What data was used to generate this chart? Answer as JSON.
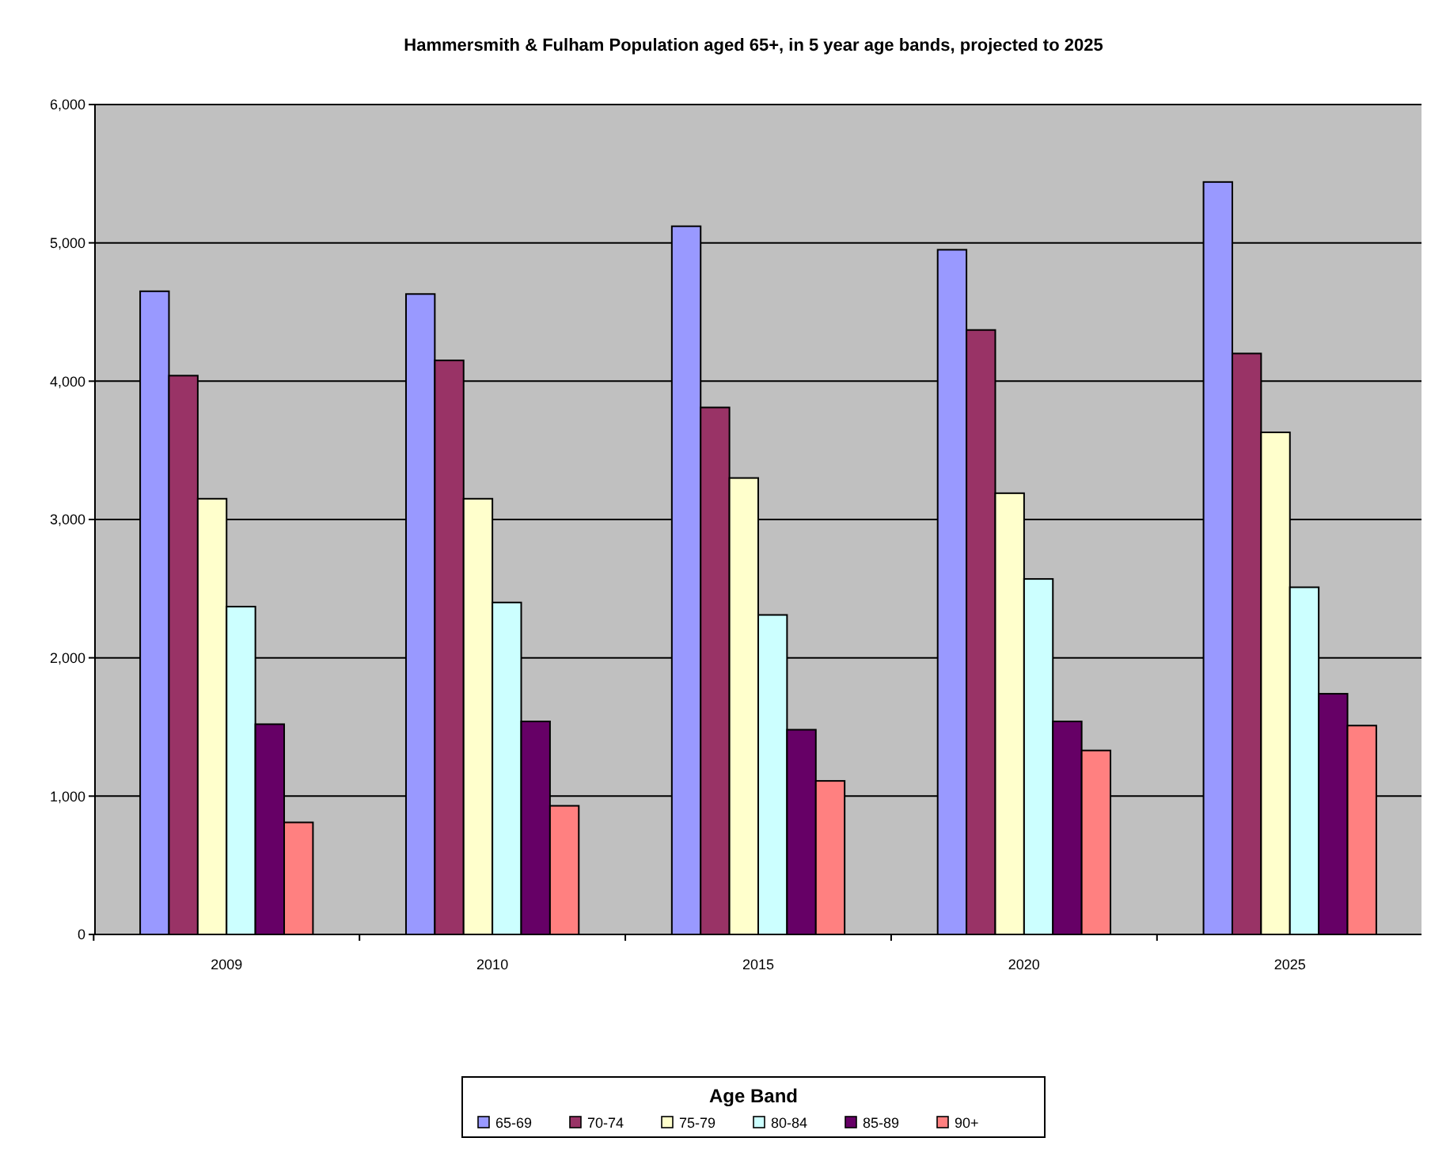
{
  "chart_data": {
    "type": "bar",
    "title": "Hammersmith & Fulham Population aged 65+, in 5 year age bands, projected to 2025",
    "legend_title": "Age Band",
    "categories": [
      "2009",
      "2010",
      "2015",
      "2020",
      "2025"
    ],
    "series": [
      {
        "name": "65-69",
        "color": "#9999ff",
        "values": [
          4650,
          4630,
          5120,
          4950,
          5440
        ]
      },
      {
        "name": "70-74",
        "color": "#993366",
        "values": [
          4040,
          4150,
          3810,
          4370,
          4200
        ]
      },
      {
        "name": "75-79",
        "color": "#ffffcc",
        "values": [
          3150,
          3150,
          3300,
          3190,
          3630
        ]
      },
      {
        "name": "80-84",
        "color": "#ccffff",
        "values": [
          2370,
          2400,
          2310,
          2570,
          2510
        ]
      },
      {
        "name": "85-89",
        "color": "#660066",
        "values": [
          1520,
          1540,
          1480,
          1540,
          1740
        ]
      },
      {
        "name": "90+",
        "color": "#ff8080",
        "values": [
          810,
          930,
          1110,
          1330,
          1510
        ]
      }
    ],
    "ylim": [
      0,
      6000
    ],
    "yticks": [
      {
        "value": 0,
        "label": "0"
      },
      {
        "value": 1000,
        "label": "1,000"
      },
      {
        "value": 2000,
        "label": "2,000"
      },
      {
        "value": 3000,
        "label": "3,000"
      },
      {
        "value": 4000,
        "label": "4,000"
      },
      {
        "value": 5000,
        "label": "5,000"
      },
      {
        "value": 6000,
        "label": "6,000"
      }
    ],
    "grid": "y",
    "legend": "bottom"
  }
}
